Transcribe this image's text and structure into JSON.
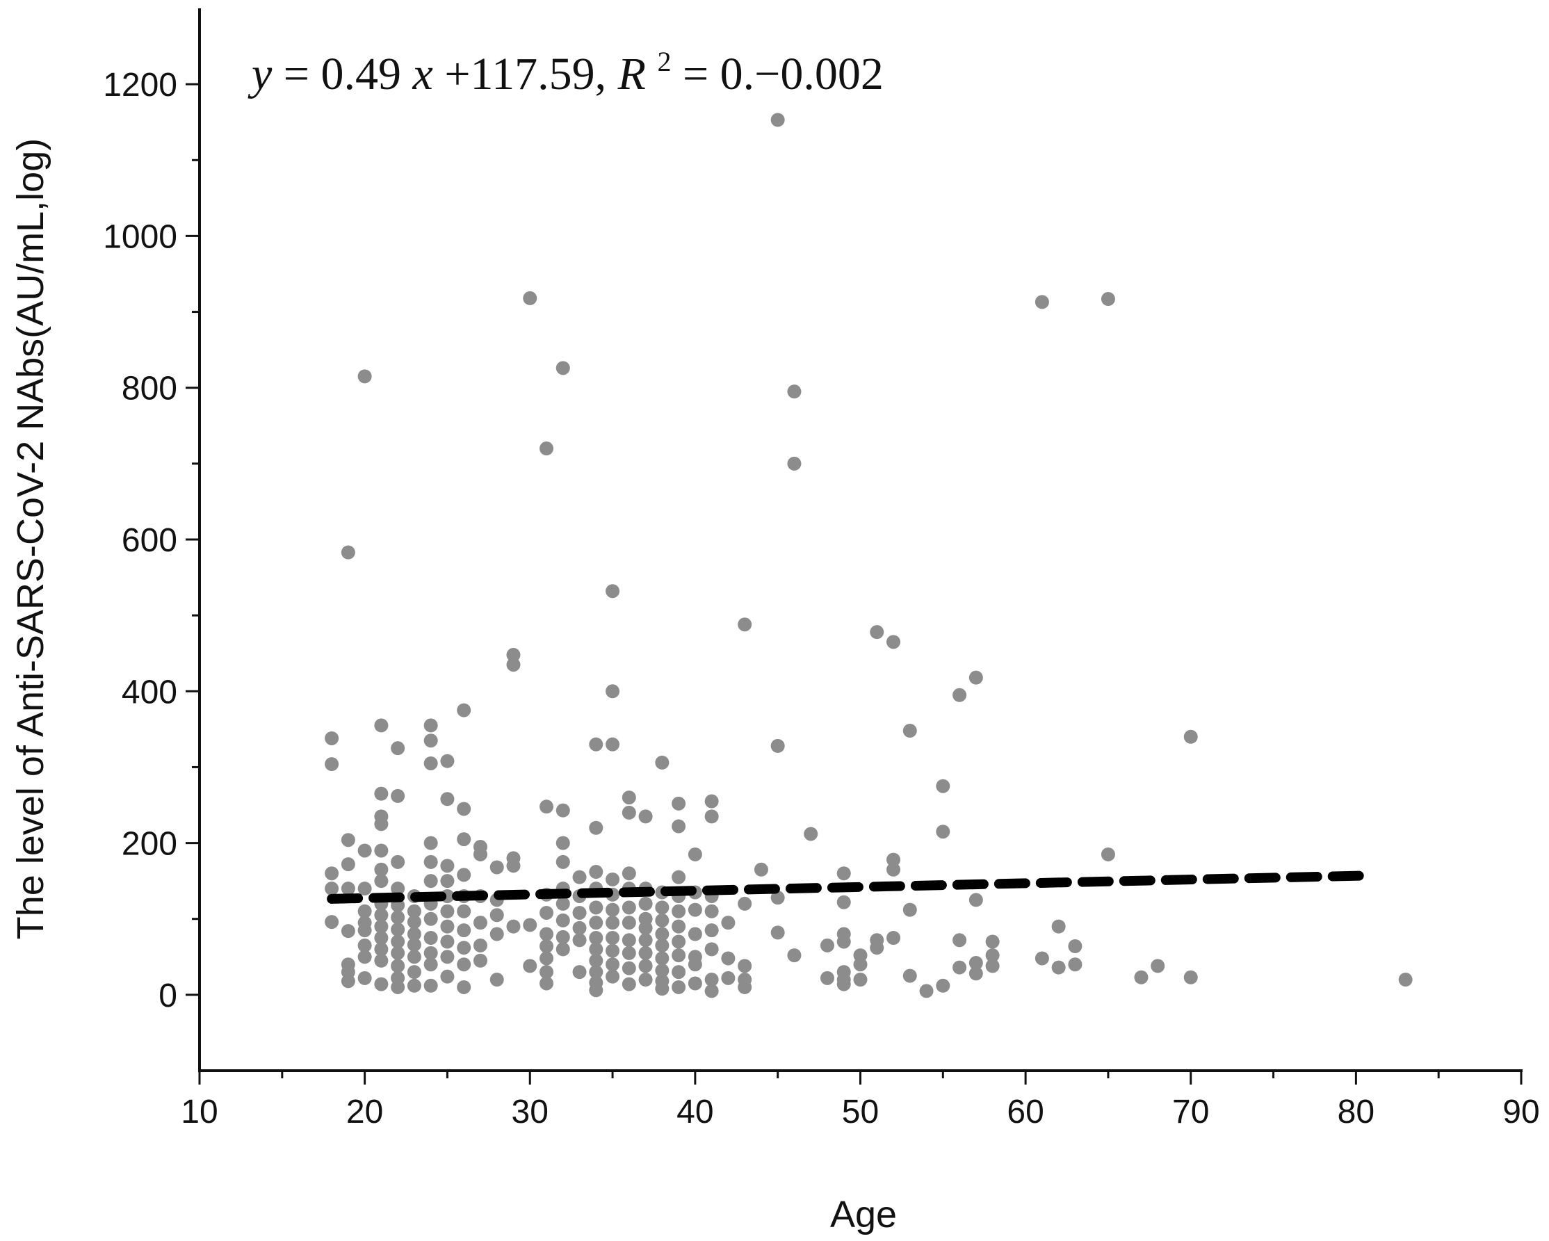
{
  "chart_data": {
    "type": "scatter",
    "title": "",
    "xlabel": "Age",
    "ylabel": "The level of Anti-SARS-CoV-2 NAbs(AU/mL,log)",
    "xlim": [
      10,
      90
    ],
    "ylim": [
      -100,
      1300
    ],
    "xticks": [
      "10",
      "20",
      "30",
      "40",
      "50",
      "60",
      "70",
      "80",
      "90"
    ],
    "yticks": [
      "0",
      "200",
      "400",
      "600",
      "800",
      "1000",
      "1200"
    ],
    "annotation": {
      "y": "y",
      "eq1": " = 0.49",
      "x": "x",
      "eq2": " +117.59, ",
      "r": "R",
      "sup": "2",
      "eq3": " = 0.−0.002"
    },
    "point_color": "#8c8c8c",
    "trendline": {
      "style": "dashed",
      "color": "#000000",
      "slope": 0.49,
      "intercept": 117.59,
      "x_range": [
        18,
        81
      ]
    },
    "points": [
      [
        18,
        338
      ],
      [
        18,
        304
      ],
      [
        18,
        160
      ],
      [
        18,
        140
      ],
      [
        18,
        96
      ],
      [
        19,
        583
      ],
      [
        19,
        204
      ],
      [
        19,
        172
      ],
      [
        19,
        140
      ],
      [
        19,
        84
      ],
      [
        19,
        40
      ],
      [
        19,
        30
      ],
      [
        19,
        18
      ],
      [
        20,
        815
      ],
      [
        20,
        190
      ],
      [
        20,
        140
      ],
      [
        20,
        110
      ],
      [
        20,
        95
      ],
      [
        20,
        85
      ],
      [
        20,
        65
      ],
      [
        20,
        50
      ],
      [
        20,
        22
      ],
      [
        21,
        355
      ],
      [
        21,
        265
      ],
      [
        21,
        235
      ],
      [
        21,
        225
      ],
      [
        21,
        190
      ],
      [
        21,
        165
      ],
      [
        21,
        150
      ],
      [
        21,
        120
      ],
      [
        21,
        105
      ],
      [
        21,
        90
      ],
      [
        21,
        75
      ],
      [
        21,
        60
      ],
      [
        21,
        45
      ],
      [
        21,
        14
      ],
      [
        22,
        325
      ],
      [
        22,
        262
      ],
      [
        22,
        175
      ],
      [
        22,
        140
      ],
      [
        22,
        118
      ],
      [
        22,
        102
      ],
      [
        22,
        86
      ],
      [
        22,
        70
      ],
      [
        22,
        55
      ],
      [
        22,
        38
      ],
      [
        22,
        22
      ],
      [
        22,
        10
      ],
      [
        23,
        130
      ],
      [
        23,
        110
      ],
      [
        23,
        96
      ],
      [
        23,
        80
      ],
      [
        23,
        66
      ],
      [
        23,
        50
      ],
      [
        23,
        30
      ],
      [
        23,
        12
      ],
      [
        24,
        355
      ],
      [
        24,
        335
      ],
      [
        24,
        305
      ],
      [
        24,
        200
      ],
      [
        24,
        175
      ],
      [
        24,
        150
      ],
      [
        24,
        120
      ],
      [
        24,
        100
      ],
      [
        24,
        75
      ],
      [
        24,
        55
      ],
      [
        24,
        40
      ],
      [
        24,
        12
      ],
      [
        25,
        308
      ],
      [
        25,
        258
      ],
      [
        25,
        170
      ],
      [
        25,
        150
      ],
      [
        25,
        130
      ],
      [
        25,
        110
      ],
      [
        25,
        90
      ],
      [
        25,
        70
      ],
      [
        25,
        50
      ],
      [
        25,
        24
      ],
      [
        26,
        375
      ],
      [
        26,
        245
      ],
      [
        26,
        205
      ],
      [
        26,
        158
      ],
      [
        26,
        130
      ],
      [
        26,
        110
      ],
      [
        26,
        85
      ],
      [
        26,
        62
      ],
      [
        26,
        40
      ],
      [
        26,
        10
      ],
      [
        27,
        195
      ],
      [
        27,
        185
      ],
      [
        27,
        130
      ],
      [
        27,
        95
      ],
      [
        27,
        65
      ],
      [
        27,
        45
      ],
      [
        28,
        168
      ],
      [
        28,
        125
      ],
      [
        28,
        105
      ],
      [
        28,
        80
      ],
      [
        28,
        20
      ],
      [
        29,
        448
      ],
      [
        29,
        435
      ],
      [
        29,
        180
      ],
      [
        29,
        170
      ],
      [
        29,
        90
      ],
      [
        30,
        918
      ],
      [
        30,
        92
      ],
      [
        30,
        38
      ],
      [
        31,
        720
      ],
      [
        31,
        248
      ],
      [
        31,
        132
      ],
      [
        31,
        108
      ],
      [
        31,
        80
      ],
      [
        31,
        64
      ],
      [
        31,
        48
      ],
      [
        31,
        30
      ],
      [
        31,
        15
      ],
      [
        32,
        826
      ],
      [
        32,
        243
      ],
      [
        32,
        200
      ],
      [
        32,
        175
      ],
      [
        32,
        140
      ],
      [
        32,
        120
      ],
      [
        32,
        98
      ],
      [
        32,
        76
      ],
      [
        32,
        60
      ],
      [
        33,
        155
      ],
      [
        33,
        130
      ],
      [
        33,
        108
      ],
      [
        33,
        88
      ],
      [
        33,
        72
      ],
      [
        33,
        30
      ],
      [
        34,
        330
      ],
      [
        34,
        220
      ],
      [
        34,
        162
      ],
      [
        34,
        140
      ],
      [
        34,
        115
      ],
      [
        34,
        95
      ],
      [
        34,
        75
      ],
      [
        34,
        60
      ],
      [
        34,
        45
      ],
      [
        34,
        30
      ],
      [
        34,
        16
      ],
      [
        34,
        6
      ],
      [
        35,
        532
      ],
      [
        35,
        400
      ],
      [
        35,
        330
      ],
      [
        35,
        152
      ],
      [
        35,
        132
      ],
      [
        35,
        112
      ],
      [
        35,
        95
      ],
      [
        35,
        75
      ],
      [
        35,
        58
      ],
      [
        35,
        40
      ],
      [
        35,
        24
      ],
      [
        36,
        260
      ],
      [
        36,
        240
      ],
      [
        36,
        160
      ],
      [
        36,
        140
      ],
      [
        36,
        115
      ],
      [
        36,
        95
      ],
      [
        36,
        72
      ],
      [
        36,
        55
      ],
      [
        36,
        35
      ],
      [
        36,
        14
      ],
      [
        37,
        235
      ],
      [
        37,
        140
      ],
      [
        37,
        120
      ],
      [
        37,
        100
      ],
      [
        37,
        88
      ],
      [
        37,
        72
      ],
      [
        37,
        55
      ],
      [
        37,
        38
      ],
      [
        37,
        20
      ],
      [
        38,
        306
      ],
      [
        38,
        135
      ],
      [
        38,
        115
      ],
      [
        38,
        98
      ],
      [
        38,
        80
      ],
      [
        38,
        65
      ],
      [
        38,
        48
      ],
      [
        38,
        32
      ],
      [
        38,
        18
      ],
      [
        38,
        8
      ],
      [
        39,
        252
      ],
      [
        39,
        222
      ],
      [
        39,
        155
      ],
      [
        39,
        130
      ],
      [
        39,
        110
      ],
      [
        39,
        90
      ],
      [
        39,
        70
      ],
      [
        39,
        52
      ],
      [
        39,
        30
      ],
      [
        39,
        10
      ],
      [
        40,
        185
      ],
      [
        40,
        135
      ],
      [
        40,
        112
      ],
      [
        40,
        80
      ],
      [
        40,
        50
      ],
      [
        40,
        40
      ],
      [
        40,
        15
      ],
      [
        41,
        255
      ],
      [
        41,
        235
      ],
      [
        41,
        130
      ],
      [
        41,
        110
      ],
      [
        41,
        85
      ],
      [
        41,
        60
      ],
      [
        41,
        20
      ],
      [
        41,
        5
      ],
      [
        42,
        95
      ],
      [
        42,
        48
      ],
      [
        42,
        22
      ],
      [
        43,
        488
      ],
      [
        43,
        120
      ],
      [
        43,
        38
      ],
      [
        43,
        20
      ],
      [
        43,
        10
      ],
      [
        44,
        165
      ],
      [
        45,
        1153
      ],
      [
        45,
        328
      ],
      [
        45,
        128
      ],
      [
        45,
        82
      ],
      [
        46,
        795
      ],
      [
        46,
        700
      ],
      [
        46,
        52
      ],
      [
        47,
        212
      ],
      [
        48,
        65
      ],
      [
        48,
        22
      ],
      [
        49,
        160
      ],
      [
        49,
        122
      ],
      [
        49,
        80
      ],
      [
        49,
        70
      ],
      [
        49,
        30
      ],
      [
        49,
        20
      ],
      [
        49,
        14
      ],
      [
        50,
        52
      ],
      [
        50,
        40
      ],
      [
        50,
        20
      ],
      [
        51,
        478
      ],
      [
        51,
        72
      ],
      [
        51,
        62
      ],
      [
        52,
        465
      ],
      [
        52,
        178
      ],
      [
        52,
        165
      ],
      [
        52,
        75
      ],
      [
        53,
        348
      ],
      [
        53,
        112
      ],
      [
        53,
        25
      ],
      [
        54,
        5
      ],
      [
        55,
        275
      ],
      [
        55,
        215
      ],
      [
        55,
        12
      ],
      [
        56,
        395
      ],
      [
        56,
        72
      ],
      [
        56,
        36
      ],
      [
        57,
        418
      ],
      [
        57,
        125
      ],
      [
        57,
        42
      ],
      [
        57,
        28
      ],
      [
        58,
        70
      ],
      [
        58,
        52
      ],
      [
        58,
        38
      ],
      [
        61,
        913
      ],
      [
        61,
        48
      ],
      [
        62,
        90
      ],
      [
        62,
        36
      ],
      [
        63,
        64
      ],
      [
        63,
        40
      ],
      [
        65,
        917
      ],
      [
        65,
        185
      ],
      [
        67,
        23
      ],
      [
        68,
        38
      ],
      [
        70,
        340
      ],
      [
        70,
        23
      ],
      [
        83,
        20
      ]
    ]
  }
}
